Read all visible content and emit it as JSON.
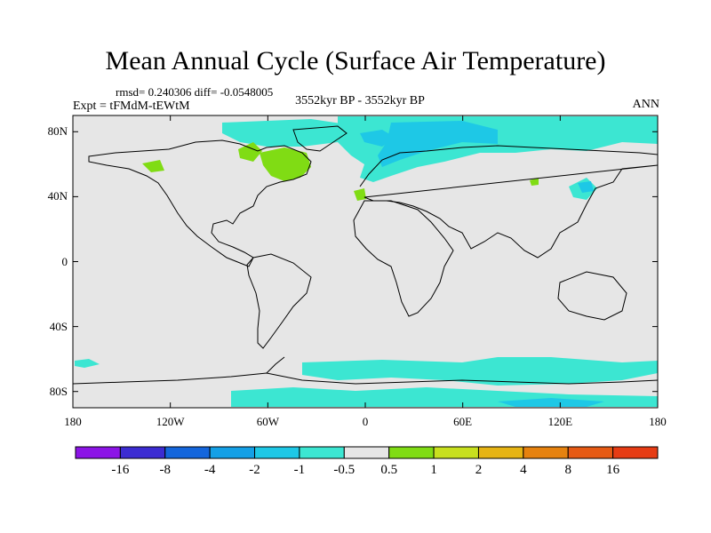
{
  "title": "Mean Annual Cycle (Surface Air Temperature)",
  "stats": "rmsd= 0.240306 diff= -0.0548005",
  "experiment": "Expt = tFMdM-tEWtM",
  "period": "3552kyr BP - 3552kyr BP",
  "season": "ANN",
  "axes": {
    "lat_range": [
      -90,
      90
    ],
    "lon_range": [
      -180,
      180
    ],
    "y_ticks": [
      {
        "lat": 80,
        "label": "80N"
      },
      {
        "lat": 40,
        "label": "40N"
      },
      {
        "lat": 0,
        "label": "0"
      },
      {
        "lat": -40,
        "label": "40S"
      },
      {
        "lat": -80,
        "label": "80S"
      }
    ],
    "x_ticks": [
      {
        "lon": -180,
        "label": "180"
      },
      {
        "lon": -120,
        "label": "120W"
      },
      {
        "lon": -60,
        "label": "60W"
      },
      {
        "lon": 0,
        "label": "0"
      },
      {
        "lon": 60,
        "label": "60E"
      },
      {
        "lon": 120,
        "label": "120E"
      },
      {
        "lon": 180,
        "label": "180"
      }
    ]
  },
  "colorbar": {
    "labels": [
      "-16",
      "-8",
      "-4",
      "-2",
      "-1",
      "-0.5",
      "0.5",
      "1",
      "2",
      "4",
      "8",
      "16"
    ],
    "colors": [
      "#8c14e6",
      "#3c2cd2",
      "#1466dc",
      "#14a0e6",
      "#1ec8e6",
      "#3ce6d2",
      "#e6e6e6",
      "#80dc14",
      "#c8e01e",
      "#e6b414",
      "#e6820f",
      "#e65a14",
      "#e63c14"
    ]
  },
  "colors": {
    "background_field": "#e6e6e6",
    "coastline": "#000000",
    "negative_small": "#3ce6d2",
    "negative_mid": "#1ec8e6",
    "positive_small": "#80dc14"
  }
}
